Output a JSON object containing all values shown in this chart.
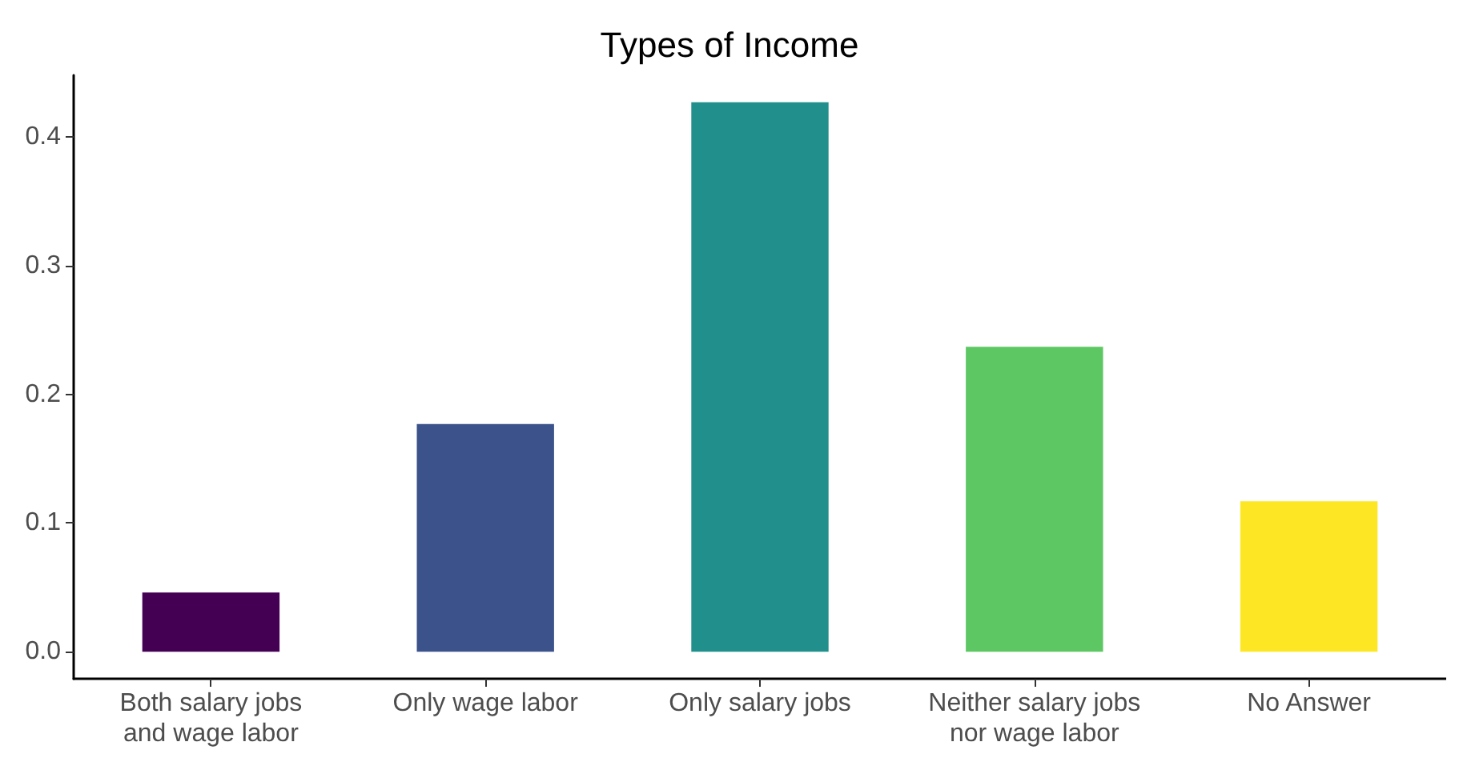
{
  "chart_data": {
    "type": "bar",
    "title": "Types of Income",
    "categories": [
      "Both salary jobs\nand wage labor",
      "Only wage labor",
      "Only salary jobs",
      "Neither salary jobs\nnor wage labor",
      "No Answer"
    ],
    "values": [
      0.046,
      0.177,
      0.427,
      0.237,
      0.117
    ],
    "colors": [
      "#440154",
      "#3b528b",
      "#21908c",
      "#5dc863",
      "#fde725"
    ],
    "ylim": [
      -0.021,
      0.448
    ],
    "yticks": [
      {
        "value": 0,
        "label": "0.0"
      },
      0.1,
      0.2,
      0.3,
      0.4
    ],
    "grid": false
  }
}
